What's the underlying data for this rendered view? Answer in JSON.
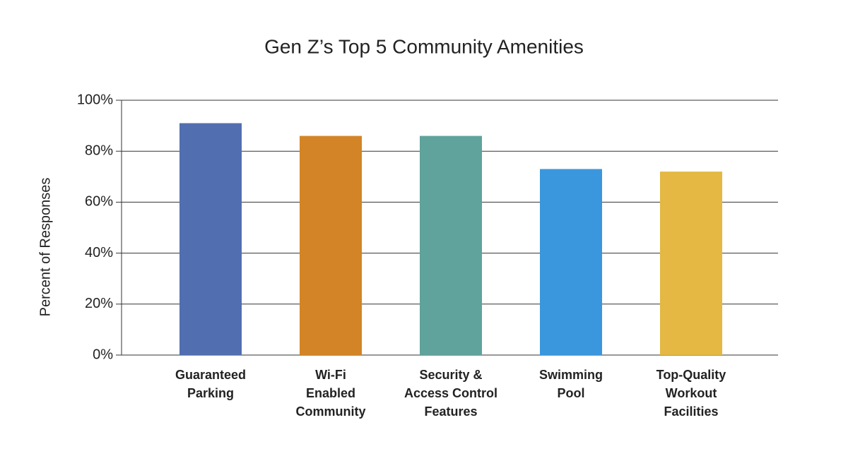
{
  "chart_data": {
    "type": "bar",
    "title": "Gen Z’s Top 5 Community Amenities",
    "y_label": "Percent of Responses",
    "categories": [
      [
        "Guaranteed",
        "Parking"
      ],
      [
        "Wi-Fi",
        "Enabled",
        "Community"
      ],
      [
        "Security &",
        "Access Control",
        "Features"
      ],
      [
        "Swimming",
        "Pool"
      ],
      [
        "Top-Quality",
        "Workout",
        "Facilities"
      ]
    ],
    "values": [
      91,
      86,
      86,
      73,
      72
    ],
    "colors": [
      "#516fb0",
      "#d38426",
      "#5fa39c",
      "#3a97dd",
      "#e4b843"
    ],
    "ylim": [
      0,
      100
    ],
    "yticks": [
      {
        "value": 0,
        "label": "0%"
      },
      {
        "value": 20,
        "label": "20%"
      },
      {
        "value": 40,
        "label": "40%"
      },
      {
        "value": 60,
        "label": "60%"
      },
      {
        "value": 80,
        "label": "80%"
      },
      {
        "value": 100,
        "label": "100%"
      }
    ],
    "grid": true
  }
}
